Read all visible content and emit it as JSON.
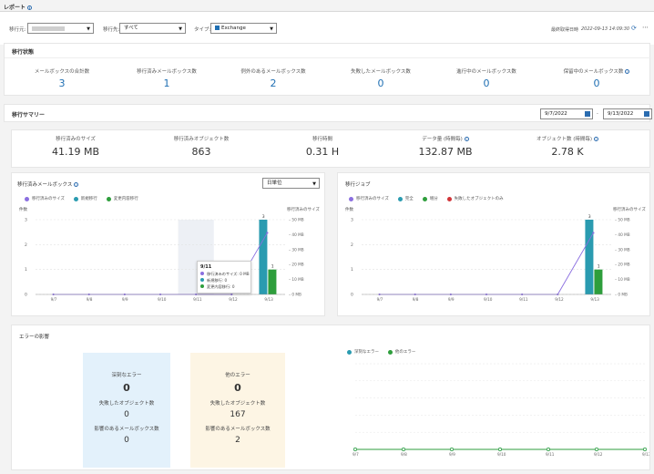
{
  "header": {
    "title": "レポート"
  },
  "filters": {
    "source_label": "移行元:",
    "source_value": "",
    "dest_label": "移行先:",
    "dest_value": "すべて",
    "type_label": "タイプ:",
    "type_value": "Exchange",
    "last_fetched_label": "最終取得日時",
    "last_fetched_value": "2022-09-13 14:09:30"
  },
  "status": {
    "title": "移行状態",
    "items": [
      {
        "label": "メールボックスの合計数",
        "value": "3"
      },
      {
        "label": "移行済みメールボックス数",
        "value": "1"
      },
      {
        "label": "例外のあるメールボックス数",
        "value": "2"
      },
      {
        "label": "失敗したメールボックス数",
        "value": "0"
      },
      {
        "label": "進行中のメールボックス数",
        "value": "0"
      },
      {
        "label": "保留中のメールボックス数",
        "value": "0"
      }
    ]
  },
  "summary": {
    "title": "移行サマリー",
    "date_from": "9/7/2022",
    "date_to": "9/13/2022",
    "date_sep": "-",
    "items": [
      {
        "label": "移行済みのサイズ",
        "value": "41.19 MB",
        "info": false
      },
      {
        "label": "移行済みオブジェクト数",
        "value": "863",
        "info": false
      },
      {
        "label": "移行時間",
        "value": "0.31 H",
        "info": false
      },
      {
        "label": "データ量 (時間毎)",
        "value": "132.87 MB",
        "info": true
      },
      {
        "label": "オブジェクト数 (時間毎)",
        "value": "2.78 K",
        "info": true
      }
    ]
  },
  "mailbox_chart": {
    "title": "移行済みメールボックス",
    "granularity": "日単位",
    "legend": [
      "移行済みのサイズ",
      "新規移行",
      "変更内容移行"
    ],
    "y_left_label": "件数",
    "y_right_label": "移行済みのサイズ",
    "tooltip": {
      "date": "9/11",
      "lines": [
        "移行済みのサイズ: 0 MB",
        "新規移行: 0",
        "変更内容移行: 0"
      ]
    }
  },
  "job_chart": {
    "title": "移行ジョブ",
    "legend": [
      "移行済みのサイズ",
      "完全",
      "増分",
      "失敗したオブジェクトのみ"
    ],
    "y_left_label": "件数",
    "y_right_label": "移行済みのサイズ"
  },
  "errors": {
    "title": "エラーの影響",
    "severe": {
      "title": "深刻なエラー",
      "count": "0",
      "obj_label": "失敗したオブジェクト数",
      "obj_value": "0",
      "mbx_label": "影響のあるメールボックス数",
      "mbx_value": "0"
    },
    "other": {
      "title": "他のエラー",
      "count": "0",
      "obj_label": "失敗したオブジェクト数",
      "obj_value": "167",
      "mbx_label": "影響のあるメールボックス数",
      "mbx_value": "2"
    },
    "legend": [
      "深刻なエラー",
      "他のエラー"
    ]
  },
  "chart_data": [
    {
      "type": "bar",
      "title": "移行済みメールボックス",
      "categories": [
        "9/7",
        "9/8",
        "9/9",
        "9/10",
        "9/11",
        "9/12",
        "9/13"
      ],
      "ylabel": "件数",
      "y2label": "移行済みのサイズ",
      "ylim": [
        0,
        3
      ],
      "y2lim": [
        0,
        50
      ],
      "y_ticks": [
        "0",
        "1",
        "2",
        "3"
      ],
      "y2_ticks": [
        "0 MB",
        "10 MB",
        "20 MB",
        "30 MB",
        "40 MB",
        "50 MB"
      ],
      "series": [
        {
          "name": "新規移行",
          "kind": "bar",
          "color": "#2a9bb0",
          "values": [
            0,
            0,
            0,
            0,
            0,
            0,
            3
          ]
        },
        {
          "name": "変更内容移行",
          "kind": "bar",
          "color": "#2e9e3c",
          "values": [
            0,
            0,
            0,
            0,
            0,
            0,
            1
          ]
        },
        {
          "name": "移行済みのサイズ",
          "kind": "line",
          "axis": "right",
          "color": "#8b6fe0",
          "values": [
            0,
            0,
            0,
            0,
            0,
            0,
            41.19
          ]
        }
      ],
      "bar_labels": [
        "3",
        "1"
      ],
      "highlight_category": "9/11"
    },
    {
      "type": "bar",
      "title": "移行ジョブ",
      "categories": [
        "9/7",
        "9/8",
        "9/9",
        "9/10",
        "9/11",
        "9/12",
        "9/13"
      ],
      "ylabel": "件数",
      "y2label": "移行済みのサイズ",
      "ylim": [
        0,
        3
      ],
      "y2lim": [
        0,
        50
      ],
      "y_ticks": [
        "0",
        "1",
        "2",
        "3"
      ],
      "y2_ticks": [
        "0 MB",
        "10 MB",
        "20 MB",
        "30 MB",
        "40 MB",
        "50 MB"
      ],
      "series": [
        {
          "name": "完全",
          "kind": "bar",
          "color": "#2a9bb0",
          "values": [
            0,
            0,
            0,
            0,
            0,
            0,
            3
          ]
        },
        {
          "name": "増分",
          "kind": "bar",
          "color": "#2e9e3c",
          "values": [
            0,
            0,
            0,
            0,
            0,
            0,
            1
          ]
        },
        {
          "name": "移行済みのサイズ",
          "kind": "line",
          "axis": "right",
          "color": "#8b6fe0",
          "values": [
            0,
            0,
            0,
            0,
            0,
            0,
            41.19
          ]
        }
      ],
      "bar_labels": [
        "3",
        "1"
      ]
    },
    {
      "type": "line",
      "title": "エラーの影響",
      "categories": [
        "9/7",
        "9/8",
        "9/9",
        "9/10",
        "9/11",
        "9/12",
        "9/13"
      ],
      "ylim": [
        0,
        5
      ],
      "series": [
        {
          "name": "深刻なエラー",
          "color": "#2a9bb0",
          "values": [
            0,
            0,
            0,
            0,
            0,
            0,
            0
          ]
        },
        {
          "name": "他のエラー",
          "color": "#2e9e3c",
          "values": [
            0,
            0,
            0,
            0,
            0,
            0,
            0
          ]
        }
      ]
    }
  ],
  "colors": {
    "accent": "#2b6cb0",
    "teal": "#2a9bb0",
    "green": "#2e9e3c",
    "purple": "#8b6fe0",
    "red": "#d13438",
    "severe_bg": "#e3f1fb",
    "other_bg": "#fdf5e4"
  }
}
